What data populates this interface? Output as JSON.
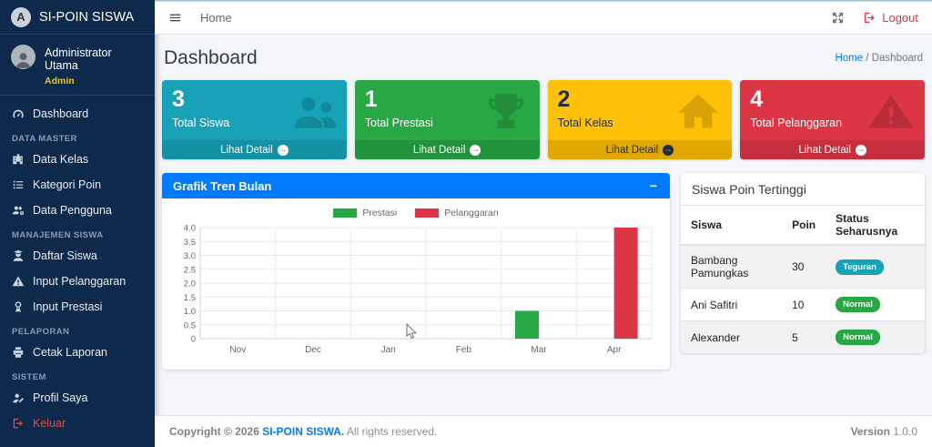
{
  "brand": {
    "title": "SI-POIN SISWA",
    "logo_letter": "A"
  },
  "user_panel": {
    "name": "Administrator Utama",
    "role": "Admin"
  },
  "sidebar": {
    "sections": [
      {
        "heading": "",
        "items": [
          {
            "label": "Dashboard",
            "icon": "gauge-icon"
          }
        ]
      },
      {
        "heading": "DATA MASTER",
        "items": [
          {
            "label": "Data Kelas",
            "icon": "school-icon"
          },
          {
            "label": "Kategori Poin",
            "icon": "list-icon"
          },
          {
            "label": "Data Pengguna",
            "icon": "users-gear-icon"
          }
        ]
      },
      {
        "heading": "MANAJEMEN SISWA",
        "items": [
          {
            "label": "Daftar Siswa",
            "icon": "user-graduate-icon"
          },
          {
            "label": "Input Pelanggaran",
            "icon": "warning-icon"
          },
          {
            "label": "Input Prestasi",
            "icon": "award-icon"
          }
        ]
      },
      {
        "heading": "PELAPORAN",
        "items": [
          {
            "label": "Cetak Laporan",
            "icon": "print-icon"
          }
        ]
      },
      {
        "heading": "SISTEM",
        "items": [
          {
            "label": "Profil Saya",
            "icon": "user-pen-icon"
          },
          {
            "label": "Keluar",
            "icon": "sign-out-icon",
            "color": "#e74c3c"
          }
        ]
      }
    ]
  },
  "navbar": {
    "home": "Home",
    "logout": "Logout"
  },
  "page": {
    "title": "Dashboard",
    "breadcrumb_home": "Home",
    "breadcrumb_sep": "/",
    "breadcrumb_current": "Dashboard"
  },
  "info_boxes": [
    {
      "value": "3",
      "label": "Total Siswa",
      "link": "Lihat Detail",
      "icon": "users-icon",
      "color": "#17a2b8",
      "footer_color": "#1591a5"
    },
    {
      "value": "1",
      "label": "Total Prestasi",
      "link": "Lihat Detail",
      "icon": "trophy-icon",
      "color": "#28a745",
      "footer_color": "#23923d"
    },
    {
      "value": "2",
      "label": "Total Kelas",
      "link": "Lihat Detail",
      "icon": "home-icon",
      "color": "#ffc107",
      "footer_color": "#e0a800",
      "text_color": "#1f2d3d"
    },
    {
      "value": "4",
      "label": "Total Pelanggaran",
      "link": "Lihat Detail",
      "icon": "warning-triangle-icon",
      "color": "#dc3545",
      "footer_color": "#c62f3e"
    }
  ],
  "chart_card": {
    "title": "Grafik Tren Bulan",
    "collapse_label": "−",
    "header_color": "#007bff"
  },
  "chart_data": {
    "type": "bar",
    "categories": [
      "Nov",
      "Dec",
      "Jan",
      "Feb",
      "Mar",
      "Apr"
    ],
    "series": [
      {
        "name": "Prestasi",
        "color": "#28a745",
        "values": [
          0,
          0,
          0,
          0,
          1,
          0
        ]
      },
      {
        "name": "Pelanggaran",
        "color": "#dc3545",
        "values": [
          0,
          0,
          0,
          0,
          0,
          4
        ]
      }
    ],
    "ylim": [
      0,
      4
    ],
    "yticks": [
      0,
      0.5,
      1.0,
      1.5,
      2.0,
      2.5,
      3.0,
      3.5,
      4.0
    ],
    "legend_position": "top",
    "grid": true,
    "title": "",
    "xlabel": "",
    "ylabel": ""
  },
  "table_card": {
    "title": "Siswa Poin Tertinggi",
    "columns": [
      "Siswa",
      "Poin",
      "Status Seharusnya"
    ],
    "rows": [
      {
        "siswa": "Bambang Pamungkas",
        "poin": "30",
        "status": "Teguran",
        "status_color": "#17a2b8"
      },
      {
        "siswa": "Ani Safitri",
        "poin": "10",
        "status": "Normal",
        "status_color": "#28a745"
      },
      {
        "siswa": "Alexander",
        "poin": "5",
        "status": "Normal",
        "status_color": "#28a745"
      }
    ]
  },
  "footer": {
    "copyright_prefix": "Copyright © 2026",
    "brand": "SI-POIN SISWA.",
    "suffix": "All rights reserved.",
    "version_label": "Version",
    "version": "1.0.0"
  }
}
